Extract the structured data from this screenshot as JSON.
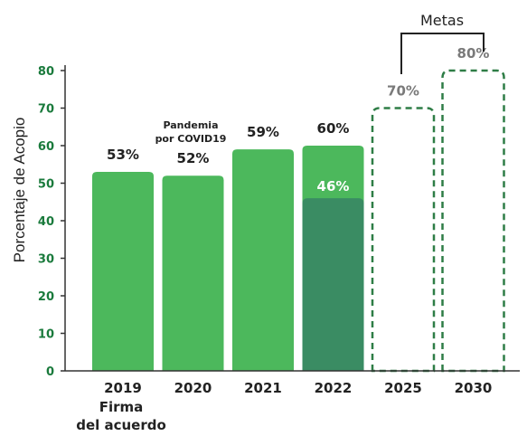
{
  "colors": {
    "bar": "#4cb85c",
    "bar_overlay": "#3a8c63",
    "target_outline": "#2e7d46",
    "target_label": "#7a7a7a",
    "axis_text": "#1a7a3c",
    "text": "#222222",
    "axis_line": "#333333"
  },
  "chart_data": {
    "type": "bar",
    "ylabel": "Porcentaje de Acopio",
    "ylim": [
      0,
      80
    ],
    "yticks": [
      0,
      10,
      20,
      30,
      40,
      50,
      60,
      70,
      80
    ],
    "categories": [
      "2019",
      "2020",
      "2021",
      "2022",
      "2025",
      "2030"
    ],
    "series": [
      {
        "values": [
          53,
          52,
          59,
          60,
          70,
          80
        ],
        "labels": [
          "53%",
          "52%",
          "59%",
          "60%",
          "70%",
          "80%"
        ],
        "style": [
          "solid",
          "solid",
          "solid",
          "solid",
          "dashed-outline",
          "dashed-outline"
        ]
      },
      {
        "values": [
          null,
          null,
          null,
          46,
          null,
          null
        ],
        "labels": [
          "",
          "",
          "",
          "46%",
          "",
          ""
        ],
        "style": [
          "overlay",
          "overlay",
          "overlay",
          "overlay",
          "overlay",
          "overlay"
        ]
      }
    ],
    "annotations": {
      "under_2019_line1": "Firma",
      "under_2019_line2": "del acuerdo",
      "above_2020_line1": "Pandemia",
      "above_2020_line2": "por COVID19",
      "bracket_label": "Metas"
    },
    "grid": false,
    "legend": "none"
  }
}
